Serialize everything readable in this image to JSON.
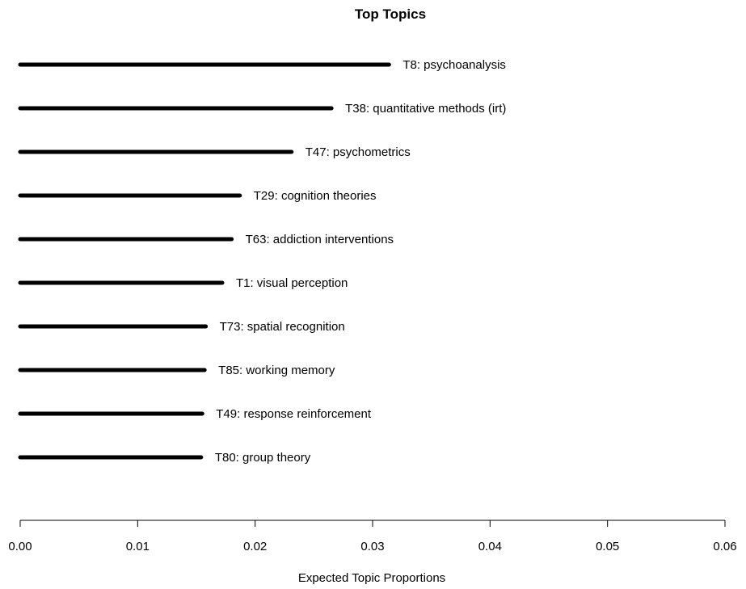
{
  "chart_data": {
    "type": "bar",
    "orientation": "horizontal",
    "title": "Top Topics",
    "xlabel": "Expected Topic Proportions",
    "ylabel": "",
    "xlim": [
      0,
      0.06
    ],
    "x_ticks": [
      "0.00",
      "0.01",
      "0.02",
      "0.03",
      "0.04",
      "0.05",
      "0.06"
    ],
    "grid": false,
    "categories": [
      "T8: psychoanalysis",
      "T38: quantitative methods (irt)",
      "T47: psychometrics",
      "T29: cognition theories",
      "T63: addiction interventions",
      "T1: visual perception",
      "T73: spatial recognition",
      "T85: working memory",
      "T49: response reinforcement",
      "T80: group theory"
    ],
    "values": [
      0.0314,
      0.0265,
      0.0231,
      0.0187,
      0.018,
      0.0172,
      0.0158,
      0.0157,
      0.0155,
      0.0154
    ],
    "color": "#000000"
  }
}
